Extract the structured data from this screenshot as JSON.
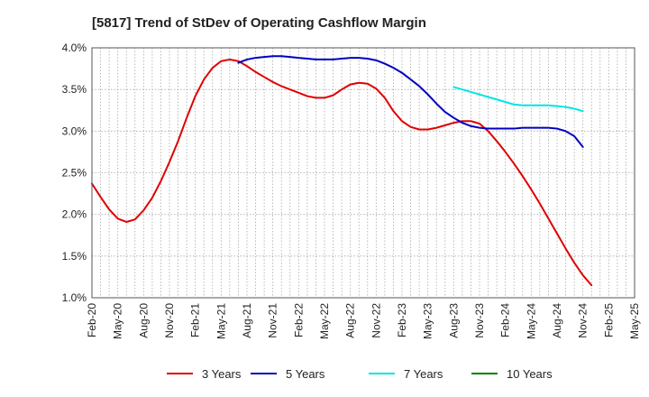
{
  "chart_data": {
    "type": "line",
    "title": "[5817]  Trend of StDev of Operating Cashflow Margin",
    "xlabel": "",
    "ylabel": "",
    "x_ticks": [
      "Feb-20",
      "May-20",
      "Aug-20",
      "Nov-20",
      "Feb-21",
      "May-21",
      "Aug-21",
      "Nov-21",
      "Feb-22",
      "May-22",
      "Aug-22",
      "Nov-22",
      "Feb-23",
      "May-23",
      "Aug-23",
      "Nov-23",
      "Feb-24",
      "May-24",
      "Aug-24",
      "Nov-24",
      "Feb-25",
      "May-25"
    ],
    "y_ticks": [
      "1.0%",
      "1.5%",
      "2.0%",
      "2.5%",
      "3.0%",
      "3.5%",
      "4.0%"
    ],
    "ylim": [
      1.0,
      4.0
    ],
    "xlim": [
      "Feb-20",
      "May-25"
    ],
    "grid": true,
    "legend_position": "bottom",
    "series": [
      {
        "name": "3 Years",
        "color": "#e00000",
        "start": "Feb-20",
        "values": [
          2.37,
          2.21,
          2.06,
          1.95,
          1.91,
          1.94,
          2.05,
          2.2,
          2.4,
          2.63,
          2.88,
          3.16,
          3.42,
          3.62,
          3.76,
          3.84,
          3.86,
          3.84,
          3.78,
          3.71,
          3.65,
          3.59,
          3.54,
          3.5,
          3.46,
          3.42,
          3.4,
          3.4,
          3.43,
          3.5,
          3.56,
          3.58,
          3.57,
          3.51,
          3.4,
          3.24,
          3.12,
          3.05,
          3.02,
          3.02,
          3.04,
          3.07,
          3.1,
          3.12,
          3.12,
          3.09,
          3.0,
          2.88,
          2.75,
          2.61,
          2.46,
          2.3,
          2.13,
          1.95,
          1.77,
          1.59,
          1.42,
          1.27,
          1.15
        ]
      },
      {
        "name": "5 Years",
        "color": "#0000c0",
        "start": "Jul-21",
        "values": [
          3.82,
          3.86,
          3.88,
          3.89,
          3.9,
          3.9,
          3.89,
          3.88,
          3.87,
          3.86,
          3.86,
          3.86,
          3.87,
          3.88,
          3.88,
          3.87,
          3.85,
          3.81,
          3.76,
          3.7,
          3.62,
          3.54,
          3.44,
          3.33,
          3.23,
          3.16,
          3.1,
          3.06,
          3.04,
          3.03,
          3.03,
          3.03,
          3.03,
          3.04,
          3.04,
          3.04,
          3.04,
          3.03,
          3.0,
          2.94,
          2.81
        ]
      },
      {
        "name": "7 Years",
        "color": "#00e5e5",
        "start": "Aug-23",
        "values": [
          3.53,
          3.5,
          3.47,
          3.44,
          3.41,
          3.38,
          3.35,
          3.32,
          3.31,
          3.31,
          3.31,
          3.31,
          3.3,
          3.29,
          3.27,
          3.24
        ]
      },
      {
        "name": "10 Years",
        "color": "#008000",
        "start": "Aug-23",
        "values": []
      }
    ]
  }
}
